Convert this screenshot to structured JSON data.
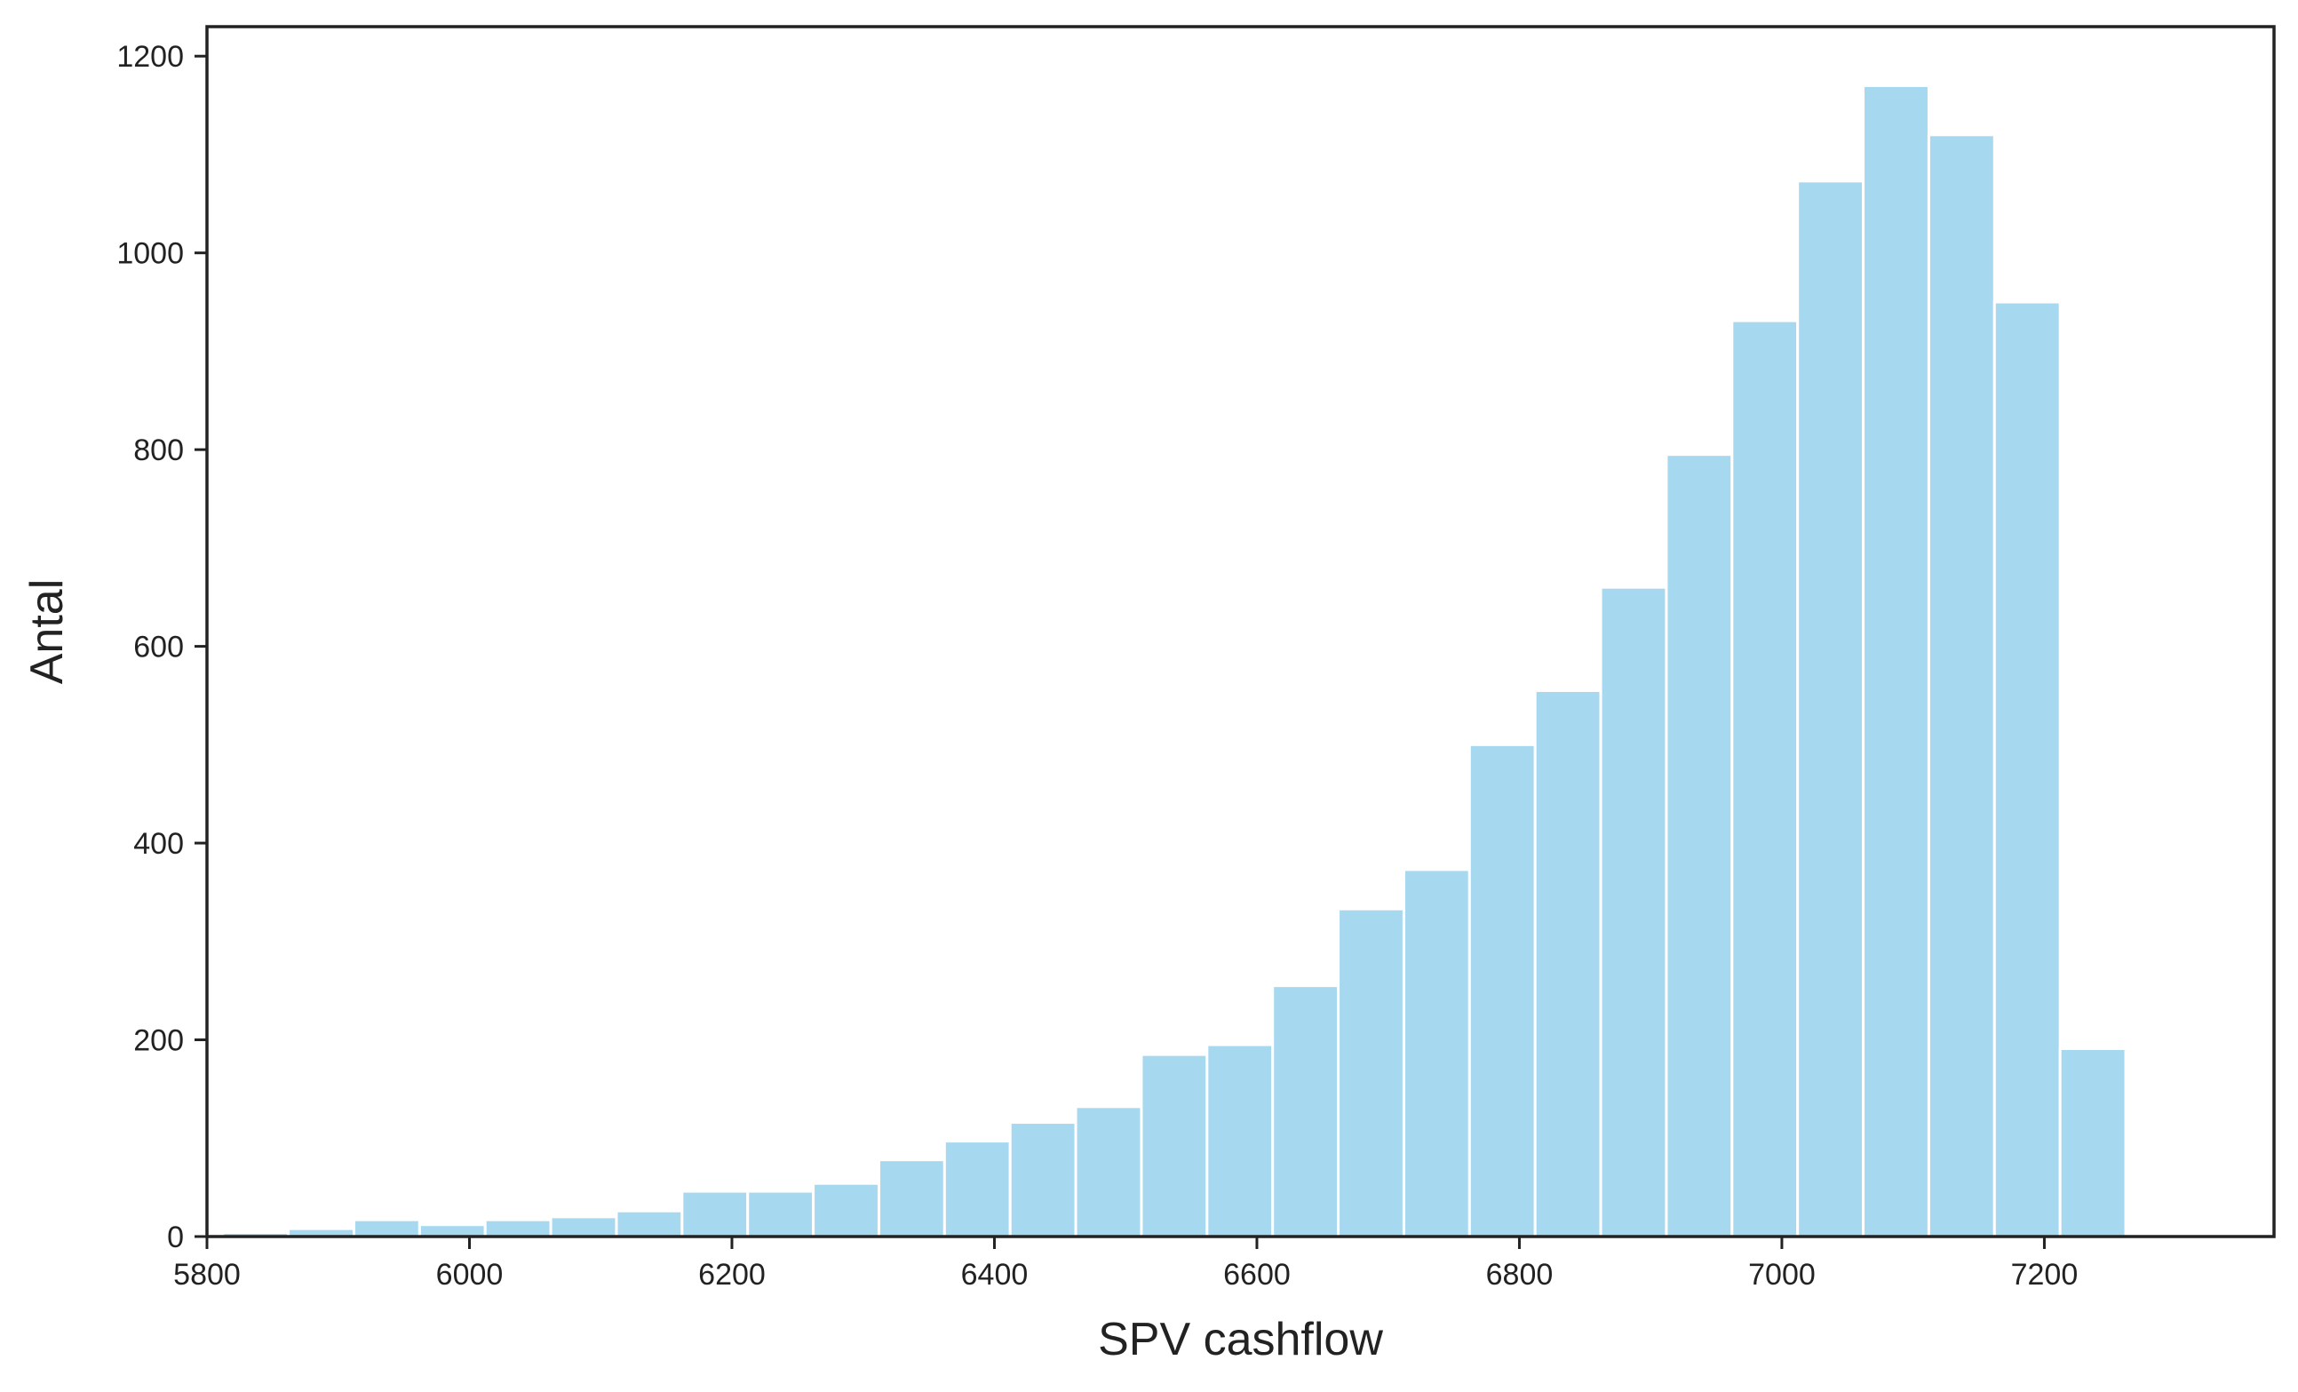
{
  "chart_data": {
    "type": "bar",
    "title": "",
    "xlabel": "SPV cashflow",
    "ylabel": "Antal",
    "xlim": [
      5800,
      7375
    ],
    "ylim": [
      0,
      1230
    ],
    "x_ticks": [
      5800,
      6000,
      6200,
      6400,
      6600,
      6800,
      7000,
      7200
    ],
    "y_ticks": [
      0,
      200,
      400,
      600,
      800,
      1000,
      1200
    ],
    "grid": false,
    "bar_color": "#A6D8F0",
    "bin_edges": [
      5812,
      5862,
      5912,
      5962,
      6012,
      6062,
      6112,
      6162,
      6212,
      6262,
      6312,
      6362,
      6412,
      6462,
      6512,
      6562,
      6612,
      6662,
      6712,
      6762,
      6812,
      6862,
      6912,
      6962,
      7012,
      7062,
      7112,
      7162,
      7212,
      7262
    ],
    "values": [
      4,
      8,
      17,
      12,
      17,
      20,
      26,
      46,
      46,
      54,
      78,
      97,
      116,
      132,
      185,
      195,
      255,
      333,
      373,
      500,
      555,
      660,
      795,
      931,
      1073,
      1170,
      1120,
      950,
      191
    ]
  }
}
